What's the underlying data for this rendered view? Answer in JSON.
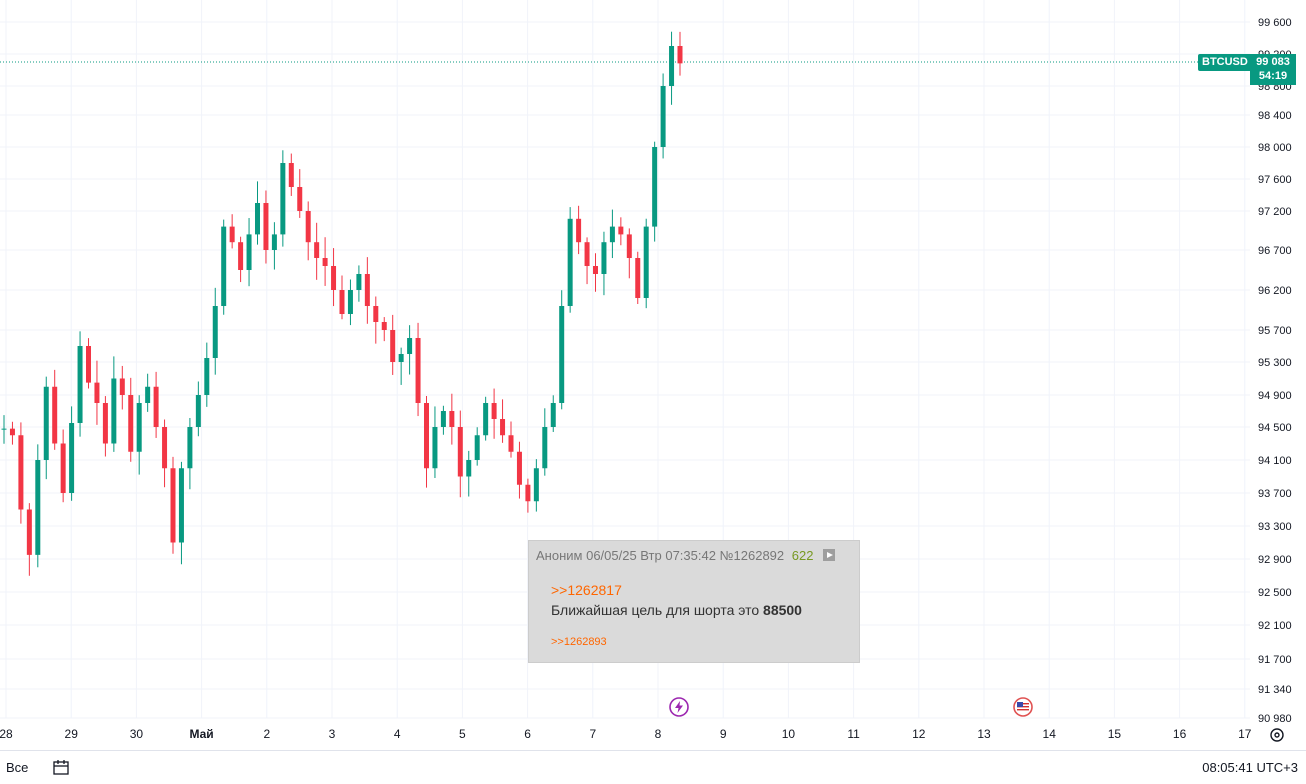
{
  "symbol": "BTCUSD",
  "last_price": "99 083",
  "countdown": "54:19",
  "y_ticks": [
    "99 600",
    "99 200",
    "98 800",
    "98 400",
    "98 000",
    "97 600",
    "97 200",
    "96 700",
    "96 200",
    "95 700",
    "95 300",
    "94 900",
    "94 500",
    "94 100",
    "93 700",
    "93 300",
    "92 900",
    "92 500",
    "92 100",
    "91 700",
    "91 340",
    "90 980"
  ],
  "x_ticks": [
    "28",
    "29",
    "30",
    "Май",
    "2",
    "3",
    "4",
    "5",
    "6",
    "7",
    "8",
    "9",
    "10",
    "11",
    "12",
    "13",
    "14",
    "15",
    "16",
    "17"
  ],
  "bottom": {
    "range": "Все",
    "time": "08:05:41 UTC+3"
  },
  "post": {
    "author": "Аноним",
    "date": "06/05/25 Втр 07:35:42",
    "number": "№1262892",
    "count": "622",
    "reply_to": ">>1262817",
    "text": "Ближайшая цель для шорта это ",
    "text_bold": "88500",
    "backlink": ">>1262893"
  },
  "colors": {
    "up": "#089981",
    "down": "#f23645",
    "grid": "#f0f3fa"
  },
  "chart_data": {
    "type": "candlestick",
    "y_ticks": [
      99600,
      99200,
      98800,
      98400,
      98000,
      97600,
      97200,
      96700,
      96200,
      95700,
      95300,
      94900,
      94500,
      94100,
      93700,
      93300,
      92900,
      92500,
      92100,
      91700,
      91340,
      90980
    ],
    "x_ticks": [
      "28",
      "29",
      "30",
      "Май",
      "2",
      "3",
      "4",
      "5",
      "6",
      "7",
      "8",
      "9",
      "10",
      "11",
      "12",
      "13",
      "14",
      "15",
      "16",
      "17"
    ],
    "series": [
      {
        "values": [
          94480,
          94400,
          93500,
          92950,
          94100,
          95000,
          94300,
          93700,
          94550,
          95500,
          95050,
          94800,
          94300,
          95100,
          94900,
          94200,
          94800,
          95000,
          94500,
          94000,
          93100,
          94000,
          94500,
          94900,
          95350,
          96000,
          97000,
          96800,
          96450,
          96900,
          97300,
          96700,
          96900,
          97800,
          97500,
          97200,
          96800,
          96600,
          96500,
          96200,
          95900,
          96200,
          96400,
          96000,
          95800,
          95700,
          95300,
          95400,
          95600,
          94800,
          94000,
          94500,
          94700,
          94500,
          93900,
          94100,
          94400,
          94800,
          94600,
          94400,
          94200,
          93800,
          93600,
          94000,
          94500,
          94800,
          96000,
          97100,
          96800,
          96500,
          96400,
          96800,
          97000,
          96900,
          96600,
          96100,
          97000,
          98000,
          98800,
          99300,
          99083
        ]
      }
    ],
    "title": "",
    "xlabel": "",
    "ylabel": ""
  },
  "events": [
    "lightning-event-icon",
    "us-flag-event-icon"
  ]
}
